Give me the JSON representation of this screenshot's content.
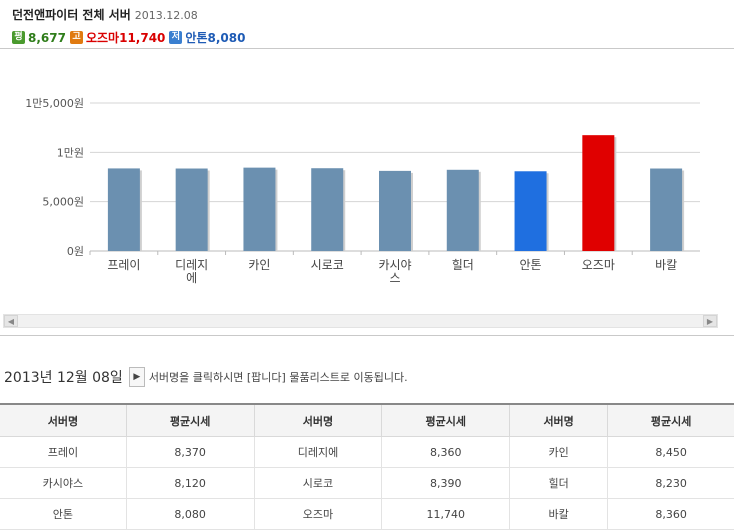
{
  "header": {
    "title": "던전앤파이터 전체 서버",
    "date": "2013.12.08",
    "stats": [
      {
        "badge": "평",
        "badge_color": "#4a9a2e",
        "text": "8,677",
        "text_color": "#2f7d1a"
      },
      {
        "badge": "고",
        "badge_color": "#e07a10",
        "text": "오즈마11,740",
        "text_color": "#d90000"
      },
      {
        "badge": "저",
        "badge_color": "#3a7fd0",
        "text": "안톤8,080",
        "text_color": "#1e5bb5"
      }
    ]
  },
  "chart_data": {
    "type": "bar",
    "categories": [
      "프레이",
      "디레지에",
      "카인",
      "시로코",
      "카시야스",
      "힐더",
      "안톤",
      "오즈마",
      "바칼"
    ],
    "values": [
      8370,
      8360,
      8450,
      8390,
      8120,
      8230,
      8080,
      11740,
      8360
    ],
    "bar_colors": [
      "#6b90b0",
      "#6b90b0",
      "#6b90b0",
      "#6b90b0",
      "#6b90b0",
      "#6b90b0",
      "#1f6fe0",
      "#e00000",
      "#6b90b0"
    ],
    "y_ticks": [
      {
        "value": 0,
        "label": "0원"
      },
      {
        "value": 5000,
        "label": "5,000원"
      },
      {
        "value": 10000,
        "label": "1만원"
      },
      {
        "value": 15000,
        "label": "1만5,000원"
      }
    ],
    "ylim": [
      0,
      15000
    ],
    "grid": true
  },
  "date_line": {
    "date_text": "2013년  12월  08일",
    "play_icon": "play-icon",
    "note": "서버명을 클릭하시면 [팝니다] 물품리스트로 이동됩니다."
  },
  "table": {
    "headers": [
      "서버명",
      "평균시세",
      "서버명",
      "평균시세",
      "서버명",
      "평균시세"
    ],
    "rows": [
      [
        "프레이",
        "8,370",
        "디레지에",
        "8,360",
        "카인",
        "8,450"
      ],
      [
        "카시야스",
        "8,120",
        "시로코",
        "8,390",
        "힐더",
        "8,230"
      ],
      [
        "안톤",
        "8,080",
        "오즈마",
        "11,740",
        "바칼",
        "8,360"
      ]
    ]
  }
}
